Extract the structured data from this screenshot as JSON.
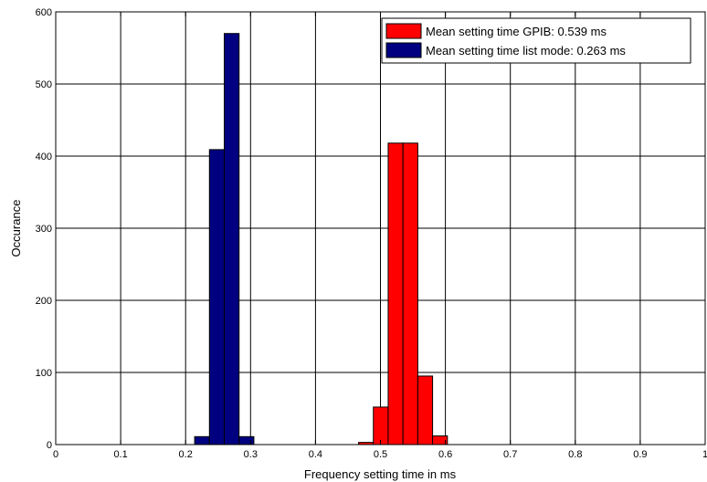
{
  "chart_data": {
    "type": "bar",
    "title": "",
    "xlabel": "Frequency setting time in ms",
    "ylabel": "Occurance",
    "xlim": [
      0,
      1
    ],
    "ylim": [
      0,
      600
    ],
    "xticks": [
      "0",
      "0.1",
      "0.2",
      "0.3",
      "0.4",
      "0.5",
      "0.6",
      "0.7",
      "0.8",
      "0.9",
      "1"
    ],
    "yticks": [
      "0",
      "100",
      "200",
      "300",
      "400",
      "500",
      "600"
    ],
    "grid": true,
    "legend_position": "top-right",
    "bin_width": 0.0228,
    "series": [
      {
        "name": "Mean setting time GPIB: 0.539 ms",
        "color": "#ff0000",
        "bins": [
          {
            "x": 0.4777,
            "value": 3
          },
          {
            "x": 0.5005,
            "value": 52
          },
          {
            "x": 0.5233,
            "value": 418
          },
          {
            "x": 0.5461,
            "value": 418
          },
          {
            "x": 0.5689,
            "value": 95
          },
          {
            "x": 0.5917,
            "value": 12
          }
        ]
      },
      {
        "name": "Mean setting time list mode: 0.263 ms",
        "color": "#000080",
        "bins": [
          {
            "x": 0.2253,
            "value": 11
          },
          {
            "x": 0.2481,
            "value": 409
          },
          {
            "x": 0.2709,
            "value": 570
          },
          {
            "x": 0.2937,
            "value": 11
          }
        ]
      }
    ]
  }
}
